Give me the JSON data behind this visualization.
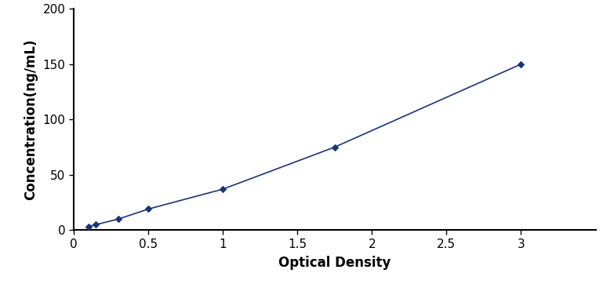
{
  "x": [
    0.1,
    0.15,
    0.3,
    0.5,
    1.0,
    1.75,
    3.0
  ],
  "y": [
    3.0,
    5.0,
    10.0,
    19.0,
    37.0,
    75.0,
    150.0
  ],
  "line_color": "#1c3473",
  "marker_color": "#1c3473",
  "marker_style": "D",
  "marker_size": 4.5,
  "line_width": 1.2,
  "xlabel": "Optical Density",
  "ylabel": "Concentration(ng/mL)",
  "xlim": [
    0,
    3.5
  ],
  "ylim": [
    0,
    200
  ],
  "xticks": [
    0,
    0.5,
    1.0,
    1.5,
    2.0,
    2.5,
    3.0
  ],
  "xtick_labels": [
    "0",
    "0.5",
    "1",
    "1.5",
    "2",
    "2.5",
    "3"
  ],
  "yticks": [
    0,
    50,
    100,
    150,
    200
  ],
  "ytick_labels": [
    "0",
    "50",
    "100",
    "150",
    "200"
  ],
  "xlabel_fontsize": 12,
  "ylabel_fontsize": 12,
  "tick_fontsize": 11,
  "background_color": "#ffffff"
}
